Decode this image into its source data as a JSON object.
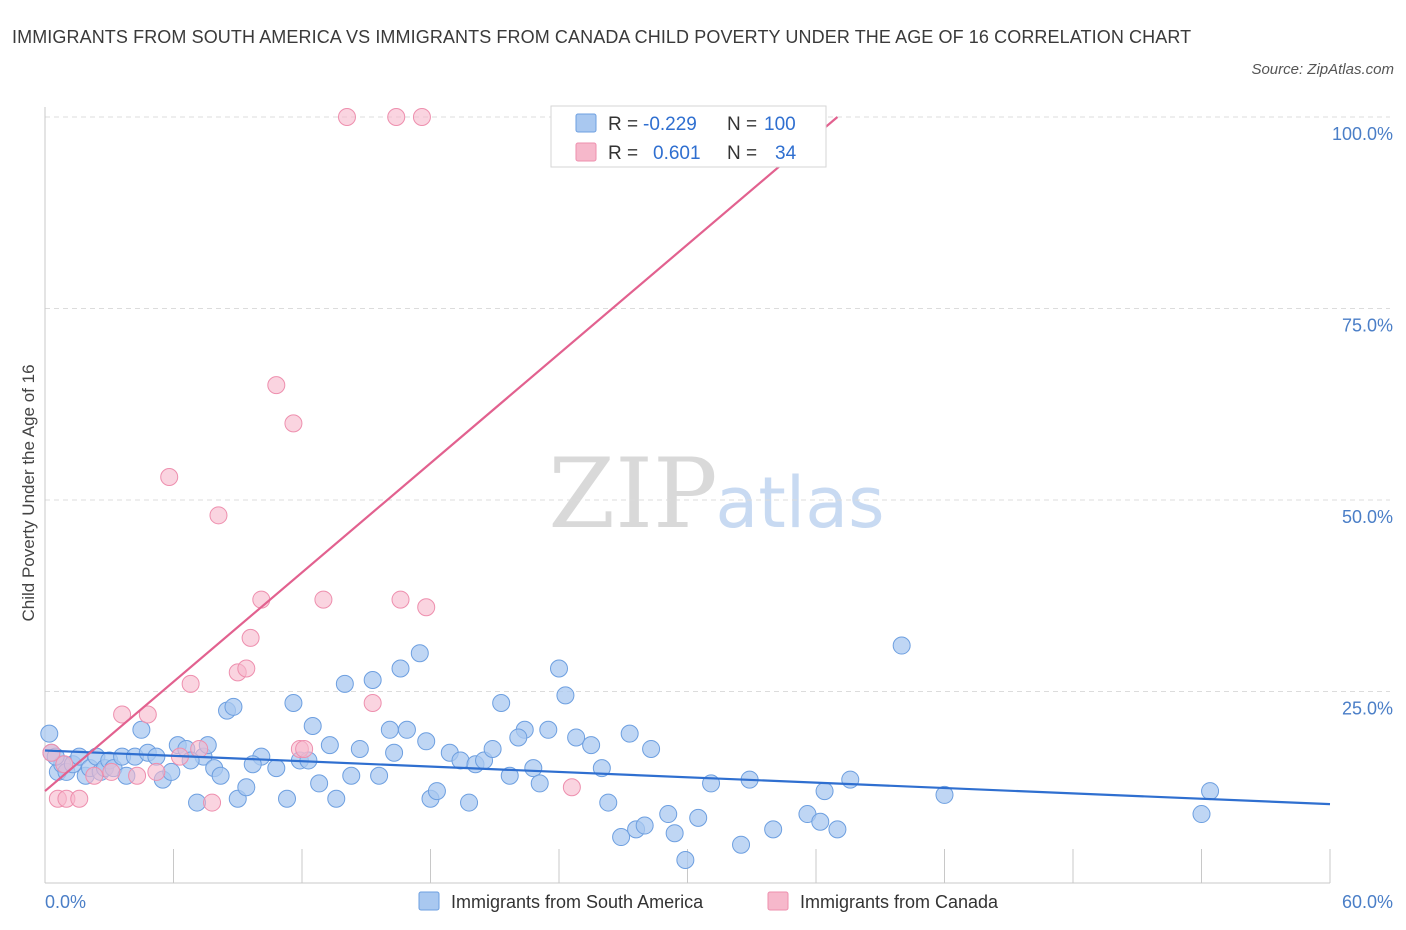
{
  "header": {
    "title": "IMMIGRANTS FROM SOUTH AMERICA VS IMMIGRANTS FROM CANADA CHILD POVERTY UNDER THE AGE OF 16 CORRELATION CHART",
    "source": "Source: ZipAtlas.com"
  },
  "watermark": {
    "zip": "ZIP",
    "atlas": "atlas"
  },
  "legend": {
    "row1": {
      "r_label": "R =",
      "r_value": "-0.229",
      "n_label": "N =",
      "n_value": "100"
    },
    "row2": {
      "r_label": "R =",
      "r_value": "0.601",
      "n_label": "N =",
      "n_value": "34"
    }
  },
  "bottom_legend": {
    "series1": "Immigrants from South America",
    "series2": "Immigrants from Canada"
  },
  "colors": {
    "blue_fill": "#a9c8f0",
    "blue_stroke": "#6d9fe0",
    "blue_line": "#2f6fd0",
    "pink_fill": "#f6b8cb",
    "pink_stroke": "#ee8fae",
    "pink_line": "#e2618f",
    "grid": "#dcdcdc",
    "tick_text": "#4a7ec7"
  },
  "chart_data": {
    "type": "scatter",
    "ylabel": "Child Poverty Under the Age of 16",
    "xlim": [
      0,
      60
    ],
    "ylim": [
      0,
      100
    ],
    "x_tick_labels": [
      "0.0%",
      "60.0%"
    ],
    "y_ticks": [
      {
        "value": 25,
        "label": "25.0%"
      },
      {
        "value": 50,
        "label": "50.0%"
      },
      {
        "value": 75,
        "label": "75.0%"
      },
      {
        "value": 100,
        "label": "100.0%"
      }
    ],
    "grid": true,
    "series": [
      {
        "name": "Immigrants from South America",
        "color": "blue",
        "trend": {
          "x": [
            0,
            60
          ],
          "y": [
            17.3,
            10.3
          ]
        },
        "points": [
          [
            0.2,
            19.5
          ],
          [
            0.3,
            17
          ],
          [
            0.6,
            14.5
          ],
          [
            0.8,
            15.5
          ],
          [
            1.0,
            14.5
          ],
          [
            1.3,
            15.5
          ],
          [
            1.6,
            16.5
          ],
          [
            1.9,
            14
          ],
          [
            2.1,
            15
          ],
          [
            2.4,
            16.5
          ],
          [
            2.6,
            14.5
          ],
          [
            2.8,
            15
          ],
          [
            3.0,
            16
          ],
          [
            3.2,
            15
          ],
          [
            3.6,
            16.5
          ],
          [
            3.8,
            14
          ],
          [
            4.2,
            16.5
          ],
          [
            4.5,
            20
          ],
          [
            4.8,
            17
          ],
          [
            5.2,
            16.5
          ],
          [
            5.5,
            13.5
          ],
          [
            5.9,
            14.5
          ],
          [
            6.2,
            18
          ],
          [
            6.6,
            17.5
          ],
          [
            7.1,
            10.5
          ],
          [
            7.4,
            16.5
          ],
          [
            7.6,
            18
          ],
          [
            7.9,
            15
          ],
          [
            8.2,
            14
          ],
          [
            8.5,
            22.5
          ],
          [
            8.8,
            23
          ],
          [
            9.0,
            11
          ],
          [
            9.4,
            12.5
          ],
          [
            10.1,
            16.5
          ],
          [
            10.8,
            15
          ],
          [
            11.3,
            11
          ],
          [
            11.6,
            23.5
          ],
          [
            11.9,
            16
          ],
          [
            12.3,
            16
          ],
          [
            12.5,
            20.5
          ],
          [
            12.8,
            13
          ],
          [
            13.3,
            18
          ],
          [
            13.6,
            11
          ],
          [
            14.0,
            26
          ],
          [
            14.3,
            14
          ],
          [
            14.7,
            17.5
          ],
          [
            15.3,
            26.5
          ],
          [
            15.6,
            14
          ],
          [
            16.1,
            20
          ],
          [
            16.3,
            17
          ],
          [
            16.6,
            28
          ],
          [
            16.9,
            20
          ],
          [
            17.5,
            30
          ],
          [
            17.8,
            18.5
          ],
          [
            18.0,
            11
          ],
          [
            18.3,
            12
          ],
          [
            18.9,
            17
          ],
          [
            19.4,
            16
          ],
          [
            19.8,
            10.5
          ],
          [
            20.1,
            15.5
          ],
          [
            20.5,
            16
          ],
          [
            20.9,
            17.5
          ],
          [
            21.3,
            23.5
          ],
          [
            21.7,
            14
          ],
          [
            22.4,
            20
          ],
          [
            22.8,
            15
          ],
          [
            23.1,
            13
          ],
          [
            23.5,
            20
          ],
          [
            24.0,
            28
          ],
          [
            24.3,
            24.5
          ],
          [
            24.8,
            19
          ],
          [
            25.5,
            18
          ],
          [
            26.0,
            15
          ],
          [
            26.3,
            10.5
          ],
          [
            26.9,
            6
          ],
          [
            27.3,
            19.5
          ],
          [
            27.6,
            7
          ],
          [
            28.0,
            7.5
          ],
          [
            28.3,
            17.5
          ],
          [
            29.1,
            9
          ],
          [
            29.4,
            6.5
          ],
          [
            29.9,
            3
          ],
          [
            30.5,
            8.5
          ],
          [
            31.1,
            13
          ],
          [
            32.5,
            5
          ],
          [
            32.9,
            13.5
          ],
          [
            34.0,
            7
          ],
          [
            35.6,
            9
          ],
          [
            36.2,
            8
          ],
          [
            36.4,
            12
          ],
          [
            37.0,
            7
          ],
          [
            37.6,
            13.5
          ],
          [
            40.0,
            31
          ],
          [
            42.0,
            11.5
          ],
          [
            54.0,
            9
          ],
          [
            54.4,
            12
          ],
          [
            6.8,
            16
          ],
          [
            9.7,
            15.5
          ],
          [
            0.5,
            16.5
          ],
          [
            22.1,
            19
          ]
        ]
      },
      {
        "name": "Immigrants from Canada",
        "color": "pink",
        "trend": {
          "x": [
            0,
            37
          ],
          "y": [
            12,
            100
          ]
        },
        "points": [
          [
            0.3,
            17
          ],
          [
            0.6,
            11
          ],
          [
            1.0,
            11
          ],
          [
            1.6,
            11
          ],
          [
            2.3,
            14
          ],
          [
            3.1,
            14.5
          ],
          [
            3.6,
            22
          ],
          [
            4.3,
            14
          ],
          [
            4.8,
            22
          ],
          [
            5.2,
            14.5
          ],
          [
            5.8,
            53
          ],
          [
            6.3,
            16.5
          ],
          [
            6.8,
            26
          ],
          [
            7.2,
            17.5
          ],
          [
            7.8,
            10.5
          ],
          [
            8.1,
            48
          ],
          [
            9.0,
            27.5
          ],
          [
            9.4,
            28
          ],
          [
            9.6,
            32
          ],
          [
            10.1,
            37
          ],
          [
            10.8,
            65
          ],
          [
            11.6,
            60
          ],
          [
            11.9,
            17.5
          ],
          [
            12.1,
            17.5
          ],
          [
            13.0,
            37
          ],
          [
            14.1,
            100
          ],
          [
            15.3,
            23.5
          ],
          [
            16.4,
            100
          ],
          [
            16.6,
            37
          ],
          [
            17.6,
            100
          ],
          [
            17.8,
            36
          ],
          [
            24.6,
            12.5
          ],
          [
            33.6,
            100
          ],
          [
            0.9,
            15.5
          ]
        ]
      }
    ]
  }
}
